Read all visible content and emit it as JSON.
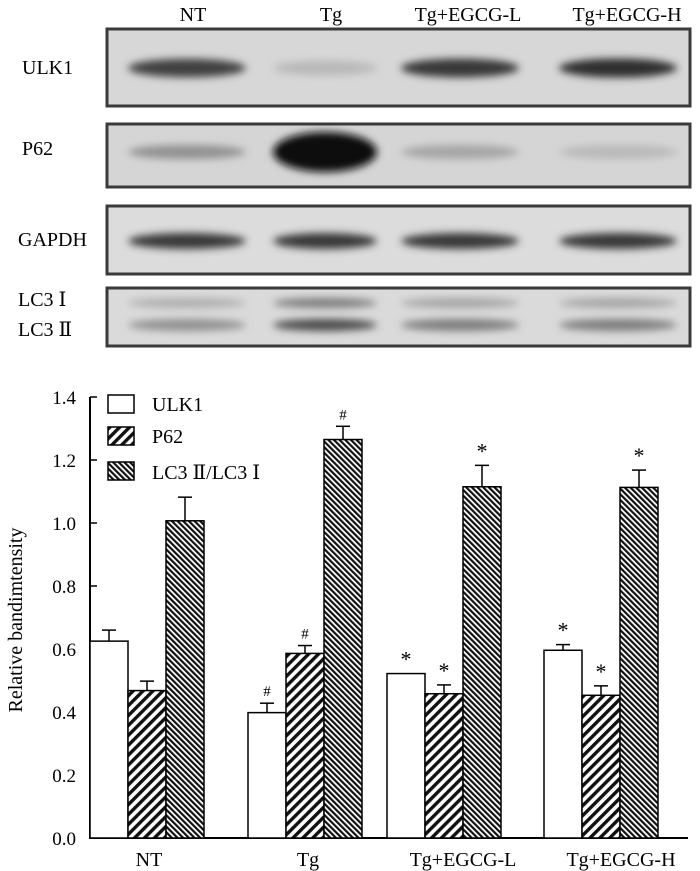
{
  "blot": {
    "lane_labels": [
      "NT",
      "Tg",
      "Tg+EGCG-L",
      "Tg+EGCG-H"
    ],
    "rows": [
      {
        "label": "ULK1",
        "intensities": [
          0.75,
          0.15,
          0.8,
          0.85
        ]
      },
      {
        "label": "P62",
        "intensities": [
          0.35,
          1.0,
          0.25,
          0.15
        ]
      },
      {
        "label": "GAPDH",
        "intensities": [
          0.8,
          0.8,
          0.8,
          0.8
        ]
      },
      {
        "labels": [
          "LC3 Ⅰ",
          "LC3 Ⅱ"
        ],
        "upper_intensities": [
          0.2,
          0.45,
          0.25,
          0.25
        ],
        "lower_intensities": [
          0.35,
          0.7,
          0.45,
          0.45
        ]
      }
    ]
  },
  "chart_data": {
    "type": "bar",
    "categories": [
      "NT",
      "Tg",
      "Tg+EGCG-L",
      "Tg+EGCG-H"
    ],
    "series": [
      {
        "name": "ULK1",
        "values": [
          0.625,
          0.398,
          0.522,
          0.596
        ],
        "errors": [
          0.035,
          0.03,
          0.0,
          0.018
        ],
        "marks": [
          "",
          "#",
          "*",
          "*"
        ],
        "fill": "white"
      },
      {
        "name": "P62",
        "values": [
          0.468,
          0.586,
          0.458,
          0.453
        ],
        "errors": [
          0.03,
          0.025,
          0.028,
          0.03
        ],
        "marks": [
          "",
          "#",
          "*",
          "*"
        ],
        "fill": "sparse-hatch"
      },
      {
        "name": "LC3 Ⅱ/LC3 Ⅰ",
        "values": [
          1.007,
          1.265,
          1.115,
          1.113
        ],
        "errors": [
          0.075,
          0.042,
          0.068,
          0.055
        ],
        "marks": [
          "",
          "#",
          "*",
          "*"
        ],
        "fill": "dense-hatch"
      }
    ],
    "ylabel": "Relative bandimtensity",
    "xlabel": "",
    "ylim": [
      0.0,
      1.4
    ],
    "yticks": [
      "0.0",
      "0.2",
      "0.4",
      "0.6",
      "0.8",
      "1.0",
      "1.2",
      "1.4"
    ],
    "legend_position": "top-left",
    "grid": false
  }
}
